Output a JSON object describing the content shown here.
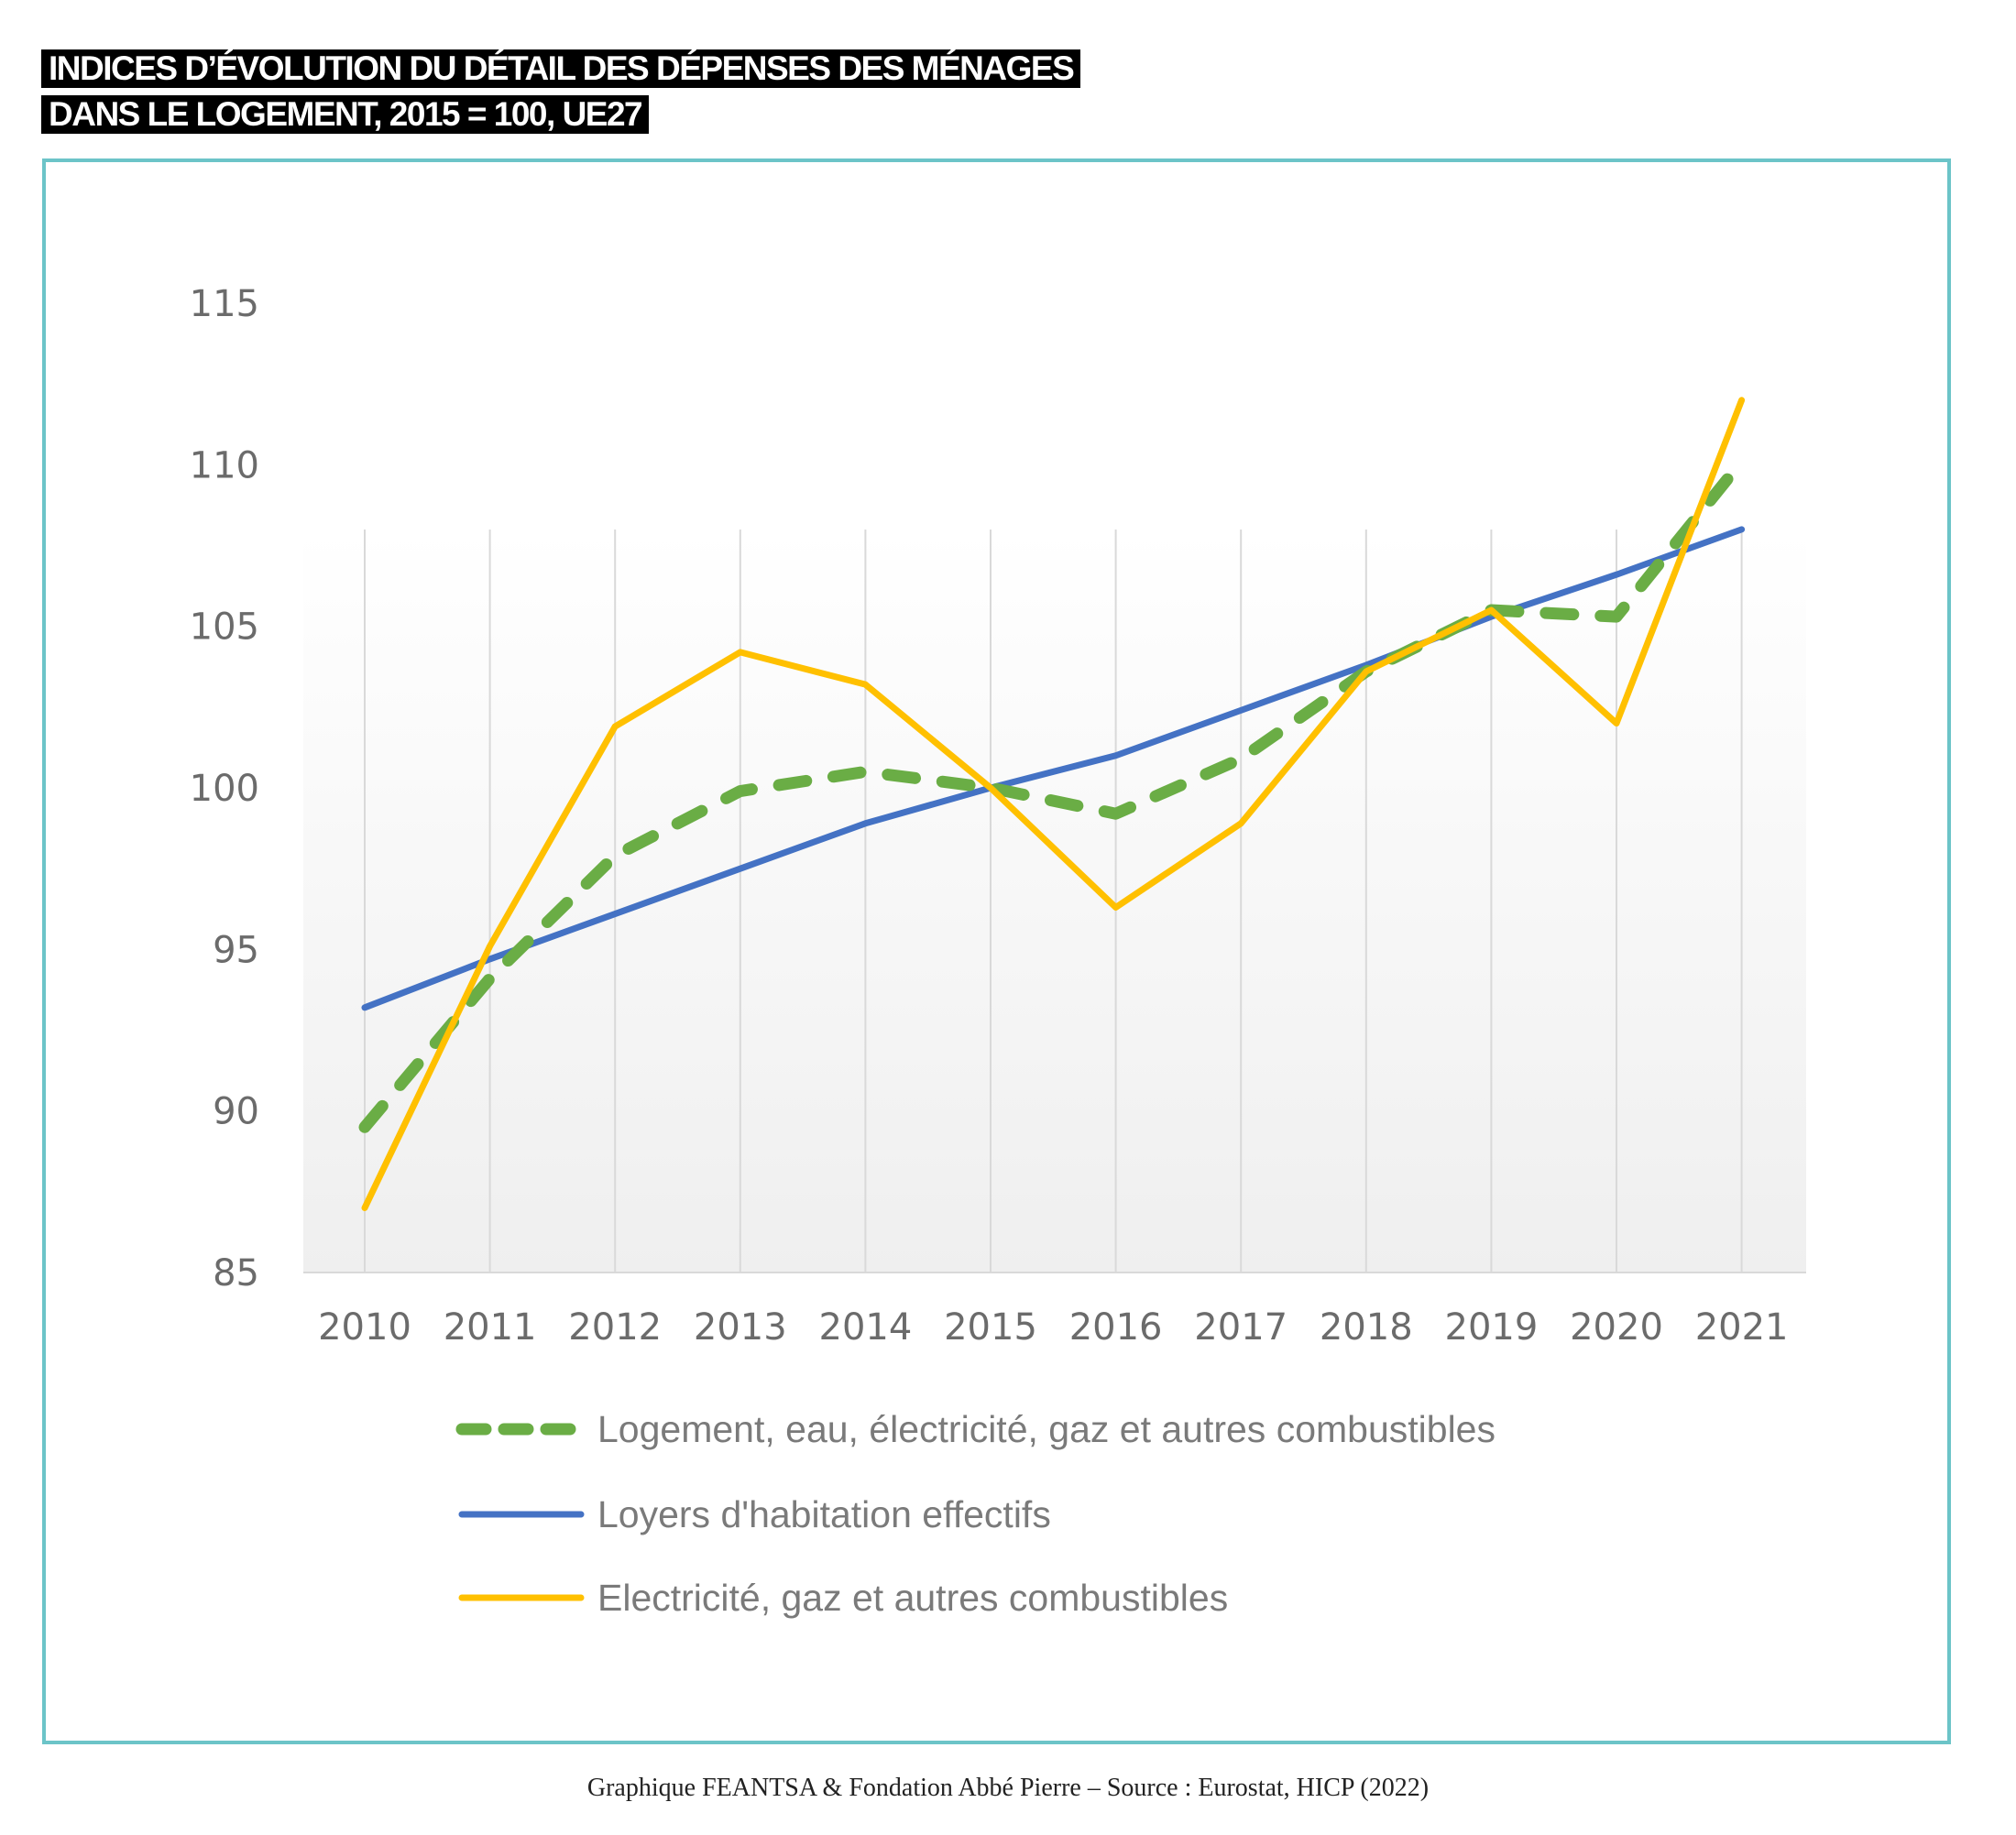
{
  "title": {
    "line1": "INDICES D’ÉVOLUTION DU DÉTAIL DES DÉPENSES DES MÉNAGES",
    "line2": "DANS LE LOGEMENT, 2015 = 100, UE27"
  },
  "footer": "Graphique FEANTSA & Fondation Abbé Pierre – Source : Eurostat, HICP (2022)",
  "colors": {
    "frame": "#6cc4c8",
    "green": "#6aad45",
    "blue": "#4472c4",
    "yellow": "#ffc000",
    "axis_text": "#6b6b6b",
    "gridline": "#d9d9d9"
  },
  "chart_data": {
    "type": "line",
    "title": "INDICES D’ÉVOLUTION DU DÉTAIL DES DÉPENSES DES MÉNAGES DANS LE LOGEMENT, 2015 = 100, UE27",
    "xlabel": "",
    "ylabel": "",
    "x": [
      "2010",
      "2011",
      "2012",
      "2013",
      "2014",
      "2015",
      "2016",
      "2017",
      "2018",
      "2019",
      "2020",
      "2021"
    ],
    "ylim": [
      85,
      115
    ],
    "yticks": [
      "85",
      "90",
      "95",
      "100",
      "105",
      "110",
      "115"
    ],
    "grid": "vertical lines at each year",
    "legend_position": "bottom",
    "series": [
      {
        "name": "Logement, eau, électricité, gaz et autres combustibles",
        "style": "dashed",
        "color": "#6aad45",
        "values": [
          89.5,
          94.1,
          97.9,
          99.9,
          100.5,
          100.0,
          99.2,
          100.9,
          103.6,
          105.5,
          105.3,
          110.1
        ]
      },
      {
        "name": "Loyers d'habitation effectifs",
        "style": "solid",
        "color": "#4472c4",
        "values": [
          93.2,
          94.7,
          96.1,
          97.5,
          98.9,
          100.0,
          101.0,
          102.4,
          103.8,
          105.3,
          106.6,
          108.0
        ]
      },
      {
        "name": "Electricité, gaz et autres combustibles",
        "style": "solid",
        "color": "#ffc000",
        "values": [
          87.0,
          95.1,
          101.9,
          104.2,
          103.2,
          100.0,
          96.3,
          98.9,
          103.6,
          105.5,
          102.0,
          112.0
        ]
      }
    ]
  }
}
